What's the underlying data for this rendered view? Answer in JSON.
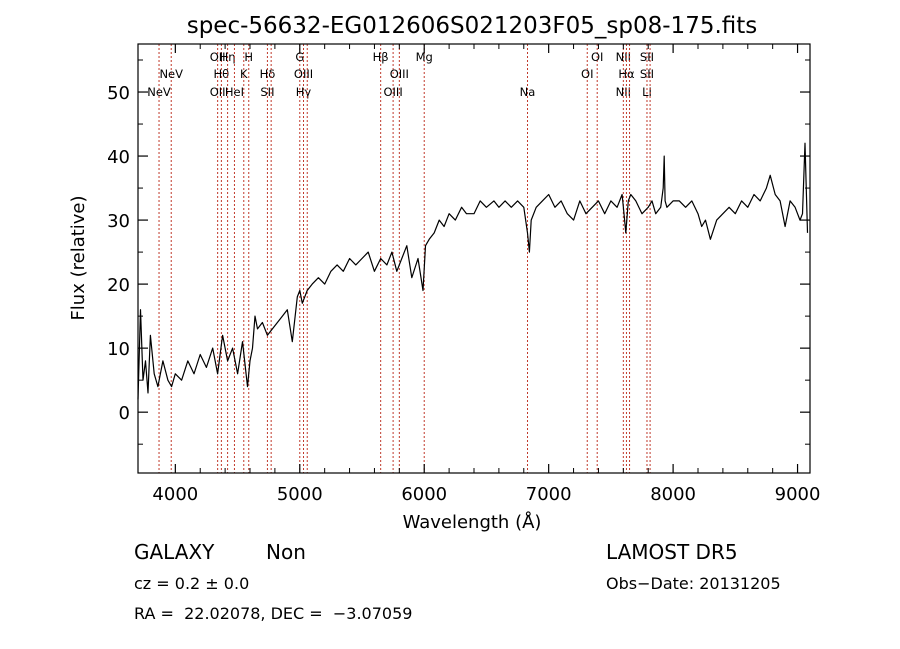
{
  "chart_data": {
    "type": "line",
    "title": "spec-56632-EG012606S021203F05_sp08-175.fits",
    "xlabel": "Wavelength (Å)",
    "ylabel": "Flux (relative)",
    "xlim": [
      3700,
      9100
    ],
    "ylim": [
      -9.5,
      57.5
    ],
    "xticks": [
      4000,
      5000,
      6000,
      7000,
      8000,
      9000
    ],
    "yticks": [
      0,
      10,
      20,
      30,
      40,
      50
    ],
    "grid": false,
    "line_color": "#000000",
    "marker_color": "#c0392b",
    "spectrum": {
      "x": [
        3700,
        3720,
        3740,
        3760,
        3780,
        3800,
        3830,
        3860,
        3900,
        3940,
        3970,
        4000,
        4050,
        4100,
        4150,
        4200,
        4250,
        4300,
        4340,
        4380,
        4420,
        4460,
        4500,
        4540,
        4580,
        4600,
        4620,
        4640,
        4660,
        4700,
        4740,
        4780,
        4820,
        4860,
        4900,
        4940,
        4980,
        5000,
        5020,
        5060,
        5100,
        5150,
        5200,
        5250,
        5300,
        5350,
        5400,
        5450,
        5500,
        5550,
        5600,
        5650,
        5700,
        5740,
        5780,
        5820,
        5860,
        5900,
        5950,
        5990,
        6010,
        6040,
        6080,
        6120,
        6160,
        6200,
        6250,
        6300,
        6340,
        6400,
        6450,
        6500,
        6560,
        6600,
        6650,
        6700,
        6750,
        6800,
        6830,
        6845,
        6860,
        6900,
        6950,
        7000,
        7050,
        7100,
        7150,
        7200,
        7250,
        7300,
        7350,
        7400,
        7450,
        7500,
        7550,
        7590,
        7605,
        7620,
        7640,
        7660,
        7700,
        7750,
        7800,
        7830,
        7860,
        7900,
        7920,
        7928,
        7936,
        7950,
        8000,
        8050,
        8100,
        8150,
        8200,
        8230,
        8260,
        8300,
        8350,
        8400,
        8450,
        8500,
        8550,
        8600,
        8650,
        8700,
        8750,
        8780,
        8820,
        8860,
        8900,
        8940,
        8980,
        9020,
        9040,
        9060,
        9080
      ],
      "y": [
        2,
        16,
        5,
        8,
        3,
        12,
        6,
        4,
        8,
        5,
        4,
        6,
        5,
        8,
        6,
        9,
        7,
        10,
        6,
        12,
        8,
        10,
        6,
        11,
        4,
        8,
        10,
        15,
        13,
        14,
        12,
        13,
        14,
        15,
        16,
        11,
        18,
        19,
        17,
        19,
        20,
        21,
        20,
        22,
        23,
        22,
        24,
        23,
        24,
        25,
        22,
        24,
        23,
        25,
        22,
        24,
        26,
        21,
        24,
        19,
        26,
        27,
        28,
        30,
        29,
        31,
        30,
        32,
        31,
        31,
        33,
        32,
        33,
        32,
        33,
        32,
        33,
        32,
        28,
        25,
        30,
        32,
        33,
        34,
        32,
        33,
        31,
        30,
        33,
        31,
        32,
        33,
        31,
        33,
        32,
        34,
        31,
        28,
        33,
        34,
        33,
        31,
        32,
        33,
        31,
        32,
        35,
        40,
        33,
        32,
        33,
        33,
        32,
        33,
        31,
        29,
        30,
        27,
        30,
        31,
        32,
        31,
        33,
        32,
        34,
        33,
        35,
        37,
        34,
        33,
        29,
        33,
        32,
        30,
        31,
        42,
        28
      ]
    },
    "line_markers": [
      {
        "wavelength": 3869,
        "labels": [
          "NeV"
        ],
        "rows": [
          2
        ]
      },
      {
        "wavelength": 3967,
        "labels": [
          "NeV"
        ],
        "rows": [
          1
        ]
      },
      {
        "wavelength": 4340,
        "labels": [
          "OII",
          "OII"
        ],
        "rows": [
          0,
          2
        ]
      },
      {
        "wavelength": 4370,
        "labels": [
          "Hθ"
        ],
        "rows": [
          1
        ]
      },
      {
        "wavelength": 4420,
        "labels": [
          "Hη"
        ],
        "rows": [
          0
        ]
      },
      {
        "wavelength": 4475,
        "labels": [
          "HeI"
        ],
        "rows": [
          2
        ]
      },
      {
        "wavelength": 4550,
        "labels": [
          "K"
        ],
        "rows": [
          1
        ]
      },
      {
        "wavelength": 4590,
        "labels": [
          "H"
        ],
        "rows": [
          0
        ]
      },
      {
        "wavelength": 4740,
        "labels": [
          "Hδ",
          "SII"
        ],
        "rows": [
          1,
          2
        ]
      },
      {
        "wavelength": 4770,
        "labels": [],
        "rows": []
      },
      {
        "wavelength": 5000,
        "labels": [
          "G"
        ],
        "rows": [
          0
        ]
      },
      {
        "wavelength": 5030,
        "labels": [
          "OIII",
          "Hγ"
        ],
        "rows": [
          1,
          2
        ]
      },
      {
        "wavelength": 5060,
        "labels": [],
        "rows": []
      },
      {
        "wavelength": 5650,
        "labels": [
          "Hβ"
        ],
        "rows": [
          0
        ]
      },
      {
        "wavelength": 5750,
        "labels": [
          "OIII"
        ],
        "rows": [
          2
        ]
      },
      {
        "wavelength": 5800,
        "labels": [
          "OIII"
        ],
        "rows": [
          1
        ]
      },
      {
        "wavelength": 6000,
        "labels": [
          "Mg"
        ],
        "rows": [
          0
        ]
      },
      {
        "wavelength": 6830,
        "labels": [
          "Na"
        ],
        "rows": [
          2
        ]
      },
      {
        "wavelength": 7310,
        "labels": [
          "OI"
        ],
        "rows": [
          1
        ]
      },
      {
        "wavelength": 7390,
        "labels": [
          "OI"
        ],
        "rows": [
          0
        ]
      },
      {
        "wavelength": 7600,
        "labels": [
          "NII",
          "NII"
        ],
        "rows": [
          0,
          2
        ]
      },
      {
        "wavelength": 7625,
        "labels": [
          "Hα"
        ],
        "rows": [
          1
        ]
      },
      {
        "wavelength": 7650,
        "labels": [],
        "rows": []
      },
      {
        "wavelength": 7790,
        "labels": [
          "SII",
          "SII",
          "LI"
        ],
        "rows": [
          0,
          1,
          2
        ]
      },
      {
        "wavelength": 7815,
        "labels": [],
        "rows": []
      }
    ]
  },
  "info": {
    "object_class": "GALAXY",
    "subclass": "Non",
    "cz": "cz = 0.2 ± 0.0",
    "coords": "RA =  22.02078, DEC =  −3.07059",
    "survey": "LAMOST DR5",
    "obs_date": "Obs−Date: 20131205"
  }
}
